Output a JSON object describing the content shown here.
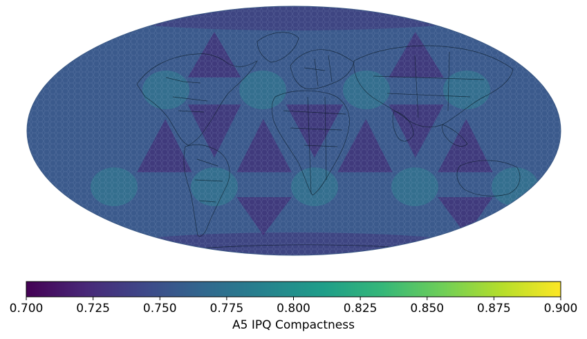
{
  "colorbar": {
    "label": "A5 IPQ Compactness",
    "min": 0.7,
    "max": 0.9,
    "ticks": [
      "0.700",
      "0.725",
      "0.750",
      "0.775",
      "0.800",
      "0.825",
      "0.850",
      "0.875",
      "0.900"
    ],
    "colormap": "viridis",
    "stops": [
      "#440154",
      "#482878",
      "#3e4989",
      "#31688e",
      "#26828e",
      "#1f9e89",
      "#35b779",
      "#6ece58",
      "#b5de2b",
      "#fde725"
    ]
  },
  "map": {
    "projection": "mollweide",
    "base_color": "#3b5a8c",
    "low_color": "#46206f",
    "high_color": "#2c8a90"
  }
}
